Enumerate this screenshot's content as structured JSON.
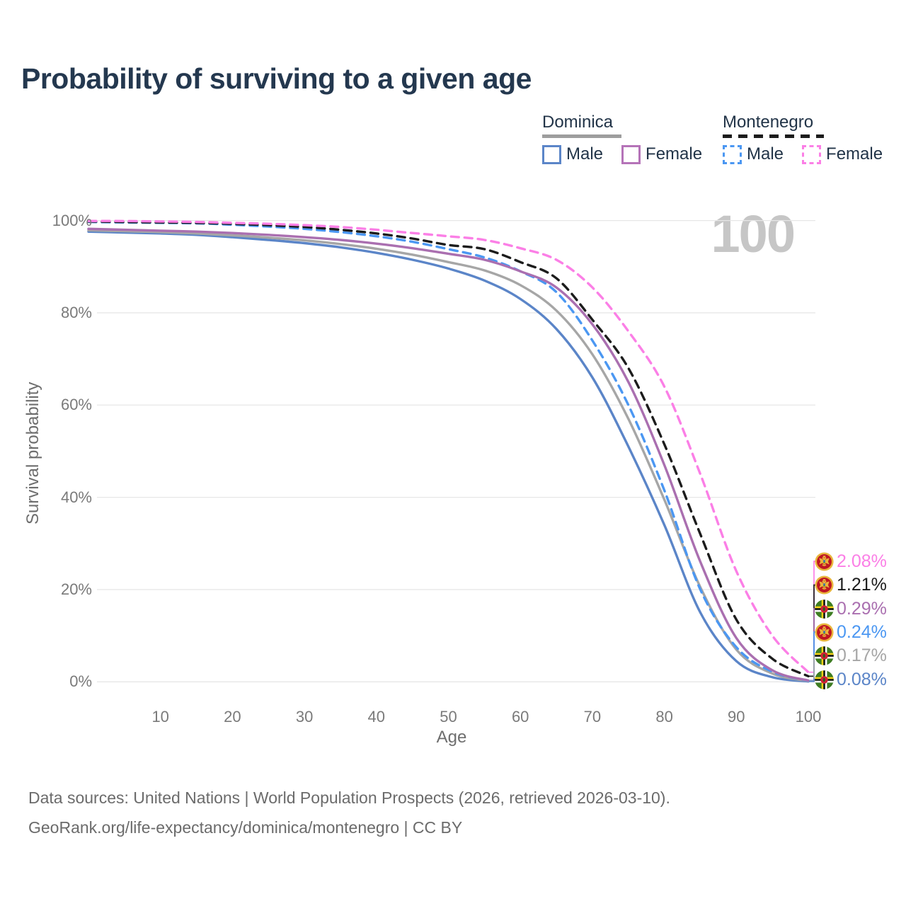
{
  "title": "Probability of surviving to a given age",
  "watermark_text": "100",
  "legend": {
    "groups": [
      {
        "name": "Dominica",
        "line_style": "solid",
        "underline_color": "#9e9e9e",
        "items": [
          {
            "label": "Male",
            "color": "#5b85c8"
          },
          {
            "label": "Female",
            "color": "#b573b8"
          }
        ]
      },
      {
        "name": "Montenegro",
        "line_style": "dashed",
        "underline_color": "#1c1c1c",
        "items": [
          {
            "label": "Male",
            "color": "#4b97f2"
          },
          {
            "label": "Female",
            "color": "#fb7fe6"
          }
        ]
      }
    ]
  },
  "chart_data": {
    "type": "line",
    "title": "Probability of surviving to a given age",
    "xlabel": "Age",
    "ylabel": "Survival probability",
    "xlim": [
      0,
      100
    ],
    "ylim": [
      0,
      100
    ],
    "x_ticks": [
      10,
      20,
      30,
      40,
      50,
      60,
      70,
      80,
      90,
      100
    ],
    "y_ticks": [
      0,
      20,
      40,
      60,
      80,
      100
    ],
    "y_tick_suffix": "%",
    "grid": "horizontal",
    "legend_position": "top-right",
    "x": [
      0,
      5,
      10,
      15,
      20,
      25,
      30,
      35,
      40,
      45,
      50,
      55,
      60,
      65,
      70,
      75,
      80,
      85,
      90,
      95,
      100
    ],
    "series": [
      {
        "name": "Montenegro Female",
        "country": "Montenegro",
        "sex": "Female",
        "color": "#fb7fe6",
        "dash": "dashed",
        "flag": "montenegro",
        "end_label": "2.08%",
        "values": [
          99.9,
          99.9,
          99.8,
          99.7,
          99.5,
          99.3,
          99.0,
          98.6,
          98.0,
          97.3,
          96.6,
          95.8,
          94.0,
          91.5,
          85.5,
          76.0,
          64.0,
          45.0,
          24.0,
          10.0,
          2.08
        ]
      },
      {
        "name": "Montenegro",
        "country": "Montenegro",
        "sex": "Both",
        "color": "#1c1c1c",
        "dash": "dashed",
        "flag": "montenegro",
        "end_label": "1.21%",
        "values": [
          99.8,
          99.7,
          99.6,
          99.5,
          99.3,
          99.0,
          98.6,
          98.0,
          97.2,
          96.1,
          94.7,
          93.8,
          91.0,
          87.5,
          78.5,
          68.0,
          51.5,
          32.0,
          13.5,
          5.0,
          1.21
        ]
      },
      {
        "name": "Dominica Female",
        "country": "Dominica",
        "sex": "Female",
        "color": "#aa6fb0",
        "dash": "solid",
        "flag": "dominica",
        "end_label": "0.29%",
        "values": [
          98.2,
          98.0,
          97.8,
          97.6,
          97.3,
          96.9,
          96.4,
          95.8,
          95.0,
          94.0,
          92.8,
          91.5,
          89.0,
          85.5,
          77.5,
          65.0,
          47.0,
          26.0,
          9.5,
          2.5,
          0.29
        ]
      },
      {
        "name": "Montenegro Male",
        "country": "Montenegro",
        "sex": "Male",
        "color": "#4b97f2",
        "dash": "dashed",
        "flag": "montenegro",
        "end_label": "0.24%",
        "values": [
          99.7,
          99.6,
          99.5,
          99.4,
          99.1,
          98.7,
          98.2,
          97.5,
          96.6,
          95.4,
          93.8,
          92.0,
          89.0,
          84.5,
          74.0,
          60.0,
          41.5,
          20.0,
          7.5,
          2.2,
          0.24
        ]
      },
      {
        "name": "Dominica",
        "country": "Dominica",
        "sex": "Both",
        "color": "#a6a6a6",
        "dash": "solid",
        "flag": "dominica",
        "end_label": "0.17%",
        "values": [
          97.9,
          97.7,
          97.5,
          97.2,
          96.8,
          96.3,
          95.7,
          94.9,
          93.9,
          92.6,
          91.0,
          89.2,
          86.0,
          80.5,
          71.0,
          57.0,
          39.5,
          20.5,
          7.0,
          1.8,
          0.17
        ]
      },
      {
        "name": "Dominica Male",
        "country": "Dominica",
        "sex": "Male",
        "color": "#5b85c8",
        "dash": "solid",
        "flag": "dominica",
        "end_label": "0.08%",
        "values": [
          97.6,
          97.4,
          97.2,
          96.9,
          96.4,
          95.8,
          95.1,
          94.2,
          93.0,
          91.5,
          89.6,
          87.0,
          83.0,
          76.5,
          66.0,
          51.0,
          34.0,
          15.0,
          4.5,
          1.0,
          0.08
        ]
      }
    ]
  },
  "footer": {
    "line1": "Data sources: United Nations | World Population Prospects (2026, retrieved 2026-03-10).",
    "line2": "GeoRank.org/life-expectancy/dominica/montenegro | CC BY"
  }
}
